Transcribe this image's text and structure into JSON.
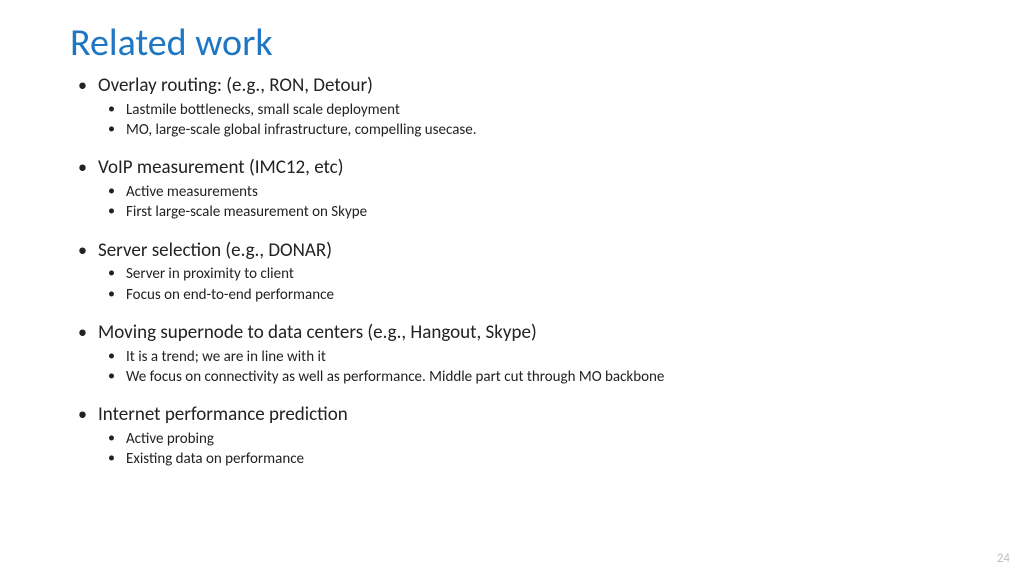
{
  "title": "Related work",
  "title_color": "#1f77c4",
  "text_color": "#222222",
  "background_color": "#ffffff",
  "page_number": "24",
  "page_number_color": "#bfbfbf",
  "title_fontsize": 38,
  "l1_fontsize": 19,
  "l2_fontsize": 15,
  "bullets": [
    {
      "label": "Overlay routing: (e.g., RON, Detour)",
      "sub": [
        "Lastmile bottlenecks, small scale deployment",
        "MO, large-scale global infrastructure, compelling usecase."
      ]
    },
    {
      "label": "VoIP measurement (IMC12, etc)",
      "sub": [
        "Active measurements",
        "First large-scale measurement on Skype"
      ]
    },
    {
      "label": "Server selection (e.g., DONAR)",
      "sub": [
        "Server in proximity to client",
        "Focus on end-to-end performance"
      ]
    },
    {
      "label": "Moving supernode to data centers (e.g., Hangout, Skype)",
      "sub": [
        "It is a trend; we are in line with it",
        "We focus on connectivity as well as performance. Middle part cut through MO backbone"
      ]
    },
    {
      "label": "Internet performance prediction",
      "sub": [
        "Active probing",
        "Existing data on performance"
      ]
    }
  ]
}
